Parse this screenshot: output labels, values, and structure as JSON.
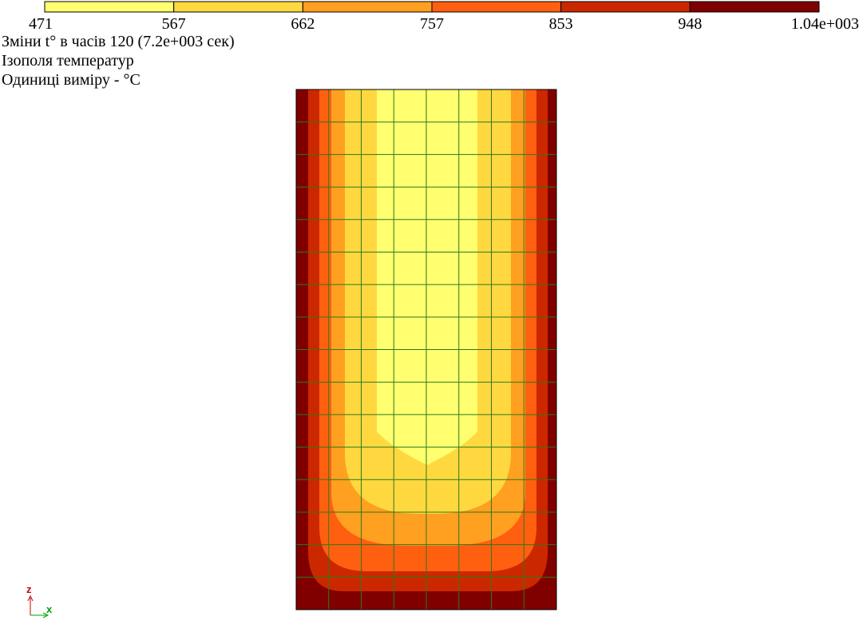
{
  "legend": {
    "labels": [
      "471",
      "567",
      "662",
      "757",
      "853",
      "948",
      "1.04e+003"
    ],
    "colors": [
      "#ffff70",
      "#ffd840",
      "#ffa020",
      "#ff6010",
      "#cc2800",
      "#800000"
    ]
  },
  "header": {
    "lines": [
      "Зміни t° в часів 120 (7.2e+003 сек)",
      "Ізополя температур",
      "Одиниці виміру - °C"
    ]
  },
  "axes": {
    "z": "z",
    "x": "x"
  }
}
